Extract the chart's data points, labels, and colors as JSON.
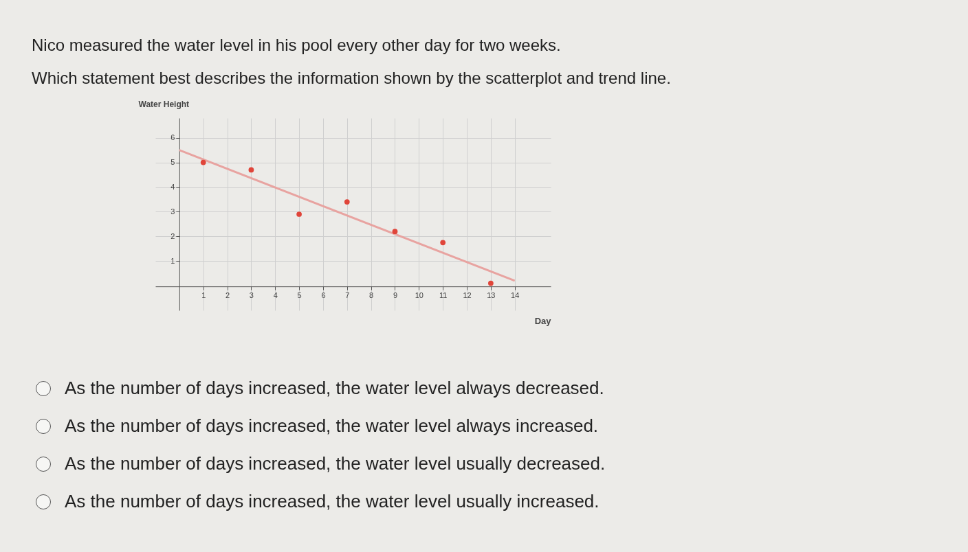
{
  "chart_data": {
    "type": "scatter",
    "title": "Nico measured the water level in his pool every other day for two weeks.",
    "subtitle": "Which statement best describes the information shown by the scatterplot and trend line.",
    "ylabel": "Water Height",
    "xlabel": "Day",
    "xlim": [
      -1,
      15.5
    ],
    "ylim": [
      -1,
      6.8
    ],
    "xticks": [
      1,
      2,
      3,
      4,
      5,
      6,
      7,
      8,
      9,
      10,
      11,
      12,
      13,
      14
    ],
    "yticks": [
      1,
      2,
      3,
      4,
      5,
      6
    ],
    "grid": true,
    "series": [
      {
        "marker": "circle",
        "color": "#e0453a",
        "x": [
          1,
          3,
          5,
          7,
          9,
          11,
          13
        ],
        "values": [
          5,
          4.7,
          2.9,
          3.4,
          2.2,
          1.75,
          0.1
        ]
      },
      {
        "type": "line",
        "marker": "none",
        "color": "#e8a3a0",
        "x": [
          0,
          14
        ],
        "values": [
          5.5,
          0.2
        ]
      }
    ],
    "annotations": [
      "As the number of days increased, the water level always decreased.",
      "As the number of days increased, the water level always increased.",
      "As the number of days increased, the water level usually decreased.",
      "As the number of days increased, the water level usually increased."
    ]
  }
}
